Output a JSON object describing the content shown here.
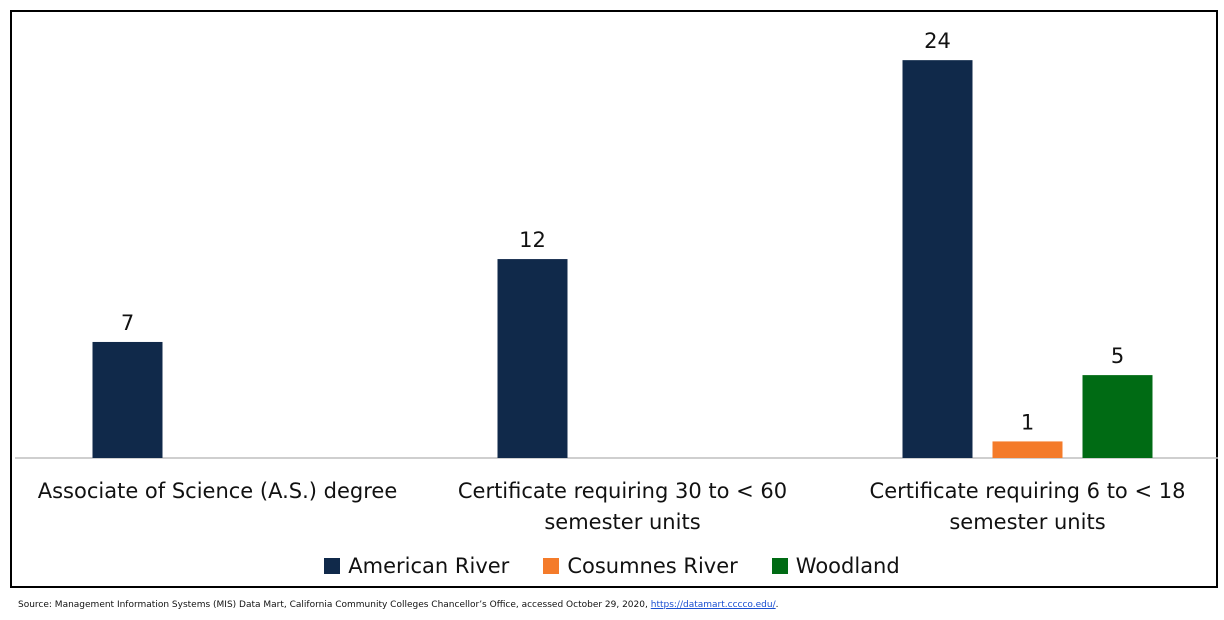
{
  "chart_data": {
    "type": "bar",
    "categories": [
      "Associate of Science (A.S.) degree",
      "Certificate requiring 30 to < 60 semester units",
      "Certificate requiring 6 to < 18 semester units"
    ],
    "series": [
      {
        "name": "American River",
        "color": "#10294a",
        "values": [
          7,
          12,
          24
        ]
      },
      {
        "name": "Cosumnes River",
        "color": "#f47b2a",
        "values": [
          null,
          null,
          1
        ]
      },
      {
        "name": "Woodland",
        "color": "#006b14",
        "values": [
          null,
          null,
          5
        ]
      }
    ],
    "ylim": [
      0,
      26
    ],
    "source": {
      "text": "Source: Management Information Systems (MIS) Data Mart, California Community Colleges Chancellor’s Office, accessed October 29, 2020,",
      "link": "https://datamart.cccco.edu/",
      "end": "."
    }
  }
}
